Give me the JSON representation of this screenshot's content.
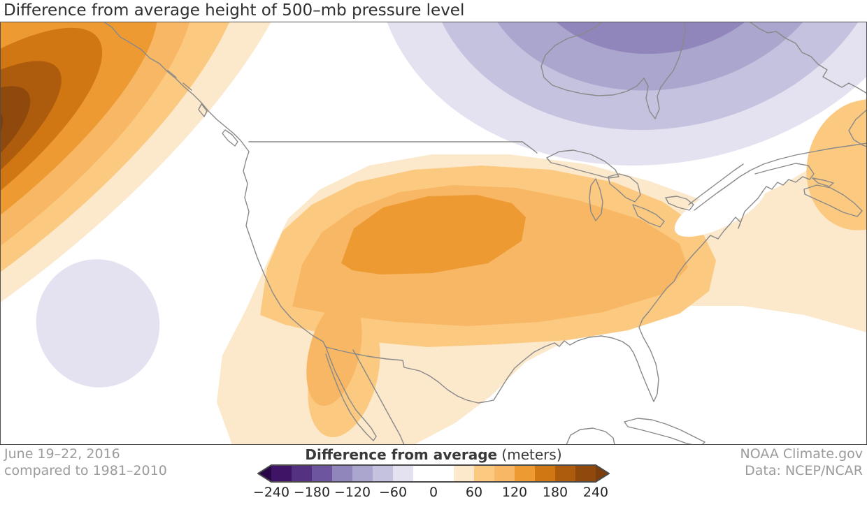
{
  "page": {
    "title": "Difference from average height of 500–mb pressure level"
  },
  "footer": {
    "date_line1": "June 19–22, 2016",
    "date_line2": "compared to 1981–2010",
    "credit_line1": "NOAA Climate.gov",
    "credit_line2": "Data: NCEP/NCAR"
  },
  "legend": {
    "title_bold": "Difference from average",
    "title_unit": " (meters)",
    "tick_labels": [
      "−240",
      "−180",
      "−120",
      "−60",
      "0",
      "60",
      "120",
      "180",
      "240"
    ],
    "tick_values": [
      -240,
      -180,
      -120,
      -60,
      0,
      60,
      120,
      180,
      240
    ],
    "segment_step_meters": 30,
    "segment_colors": [
      "#3f1366",
      "#543181",
      "#6e55a0",
      "#9186bb",
      "#aaa6ce",
      "#c4c2de",
      "#e4e2f0",
      "#ffffff",
      "#ffffff",
      "#fce8cb",
      "#fbc980",
      "#f8b765",
      "#ee9a33",
      "#d07713",
      "#ad5c0e",
      "#8f490d"
    ],
    "arrow_left_color": "#2a0848",
    "arrow_right_color": "#7c3e0c",
    "border_color": "#4a4a4a"
  },
  "map": {
    "background_color": "#ffffff",
    "coastline_color": "#898989",
    "features": [
      {
        "name": "positive-anomaly-gulf-of-alaska",
        "sign": "positive",
        "peak_band_meters": "more than 240"
      },
      {
        "name": "positive-anomaly-central-us",
        "sign": "positive",
        "peak_band_meters": "120 to 150"
      },
      {
        "name": "positive-anomaly-northwest-atlantic",
        "sign": "positive",
        "peak_band_meters": "60 to 90"
      },
      {
        "name": "negative-anomaly-hudson-bay",
        "sign": "negative",
        "peak_band_meters": "-120 to -150"
      },
      {
        "name": "negative-anomaly-pacific-offshore",
        "sign": "negative",
        "peak_band_meters": "-30 to -60"
      }
    ]
  }
}
